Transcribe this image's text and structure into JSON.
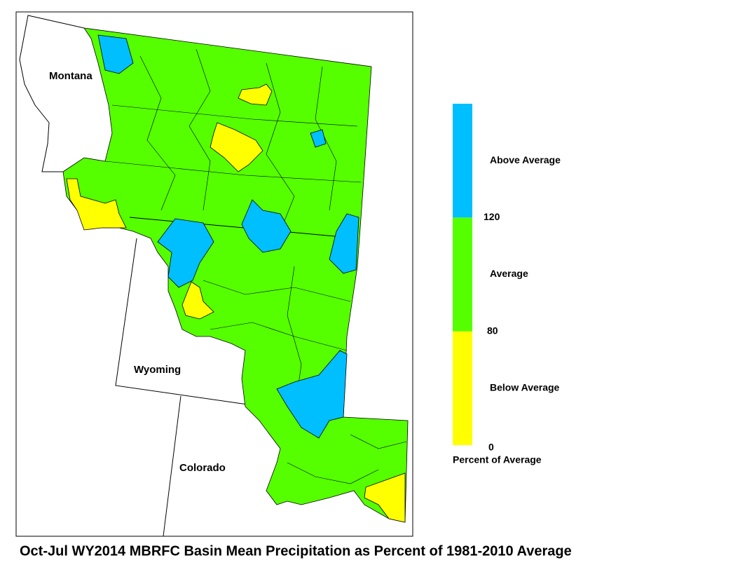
{
  "map": {
    "labels": [
      "Montana",
      "Wyoming",
      "Colorado"
    ]
  },
  "legend": {
    "title": "Percent of Average",
    "breaks": [
      0,
      80,
      120
    ],
    "classes": [
      {
        "label": "Below Average",
        "color": "#ffff00"
      },
      {
        "label": "Average",
        "color": "#55ff00"
      },
      {
        "label": "Above Average",
        "color": "#00bfff"
      }
    ]
  },
  "title": "Oct-Jul WY2014 MBRFC Basin Mean Precipitation as Percent of 1981-2010 Average"
}
